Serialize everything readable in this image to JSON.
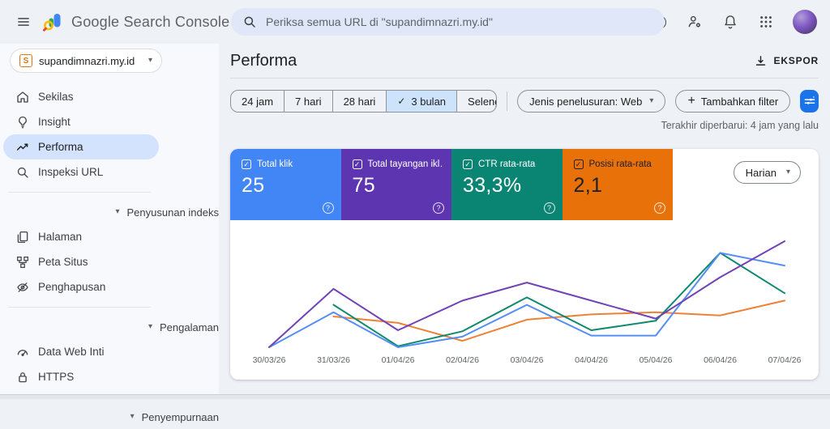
{
  "colors": {
    "accent_blue": "#1a73e8",
    "selected_nav_bg": "#d3e3fd",
    "selected_chip_bg": "#cde3fc",
    "search_bar_bg": "#dfe7f8"
  },
  "icons": {
    "caret_down": "▾",
    "check": "✓",
    "plus": "+",
    "question": "?"
  },
  "topbar": {
    "app_title": "Google Search Console",
    "search_placeholder": "Periksa semua URL di \"supandimnazri.my.id\""
  },
  "sidebar": {
    "property": "supandimnazri.my.id",
    "favicon_letter": "S",
    "items": [
      {
        "label": "Sekilas"
      },
      {
        "label": "Insight"
      },
      {
        "label": "Performa",
        "selected": true
      },
      {
        "label": "Inspeksi URL"
      }
    ],
    "sections": [
      {
        "label": "Penyusunan indeks",
        "items": [
          "Halaman",
          "Peta Situs",
          "Penghapusan"
        ]
      },
      {
        "label": "Pengalaman",
        "items": [
          "Data Web Inti",
          "HTTPS"
        ]
      },
      {
        "label": "Penyempurnaan",
        "items": []
      }
    ]
  },
  "header": {
    "title": "Performa",
    "export_label": "EKSPOR"
  },
  "filters": {
    "date_ranges": [
      {
        "label": "24 jam"
      },
      {
        "label": "7 hari"
      },
      {
        "label": "28 hari"
      },
      {
        "label": "3 bulan",
        "selected": true
      },
      {
        "label": "Selengkapnya",
        "dropdown": true
      }
    ],
    "search_type_label": "Jenis penelusuran: Web",
    "add_filter_label": "Tambahkan filter",
    "last_updated": "Terakhir diperbarui: 4 jam yang lalu"
  },
  "metrics": {
    "granularity": "Harian",
    "cards": [
      {
        "label": "Total klik",
        "value": "25",
        "color": "#4285f4",
        "text_color": "#ffffff"
      },
      {
        "label": "Total tayangan ikl…",
        "value": "75",
        "color": "#5e35b1",
        "text_color": "#ffffff"
      },
      {
        "label": "CTR rata-rata",
        "value": "33,3%",
        "color": "#0b8573",
        "text_color": "#ffffff"
      },
      {
        "label": "Posisi rata-rata",
        "value": "2,1",
        "color": "#e8710a",
        "text_color": "#202124"
      }
    ]
  },
  "chart_data": {
    "type": "line",
    "x": [
      "30/03/26",
      "31/03/26",
      "01/04/26",
      "02/04/26",
      "03/04/26",
      "04/04/26",
      "05/04/26",
      "06/04/26",
      "07/04/26"
    ],
    "y_encoding": "fraction of plot height, 0 = baseline (chart displays no y-axis labels); null = no data point drawn",
    "ylim": [
      0,
      1
    ],
    "grid": false,
    "legend": "none (line colors match the metric cards)",
    "series": [
      {
        "name": "Posisi rata-rata",
        "color": "#ee8136",
        "values": [
          null,
          0.29,
          0.23,
          0.06,
          0.26,
          0.31,
          0.33,
          0.3,
          0.44
        ]
      },
      {
        "name": "CTR rata-rata",
        "color": "#0d8a6f",
        "values": [
          null,
          0.4,
          0.01,
          0.15,
          0.47,
          0.16,
          0.25,
          0.89,
          0.51
        ]
      },
      {
        "name": "Total klik",
        "color": "#548ef5",
        "values": [
          0,
          0.33,
          0,
          0.1,
          0.4,
          0.11,
          0.11,
          0.89,
          0.77
        ]
      },
      {
        "name": "Total tayangan",
        "color": "#7142b8",
        "values": [
          0,
          0.55,
          0.16,
          0.44,
          0.61,
          0.44,
          0.27,
          0.66,
          1.0
        ]
      }
    ],
    "totals": {
      "Total klik": "25",
      "Total tayangan": "75",
      "CTR rata-rata": "33,3%",
      "Posisi rata-rata": "2,1"
    }
  }
}
